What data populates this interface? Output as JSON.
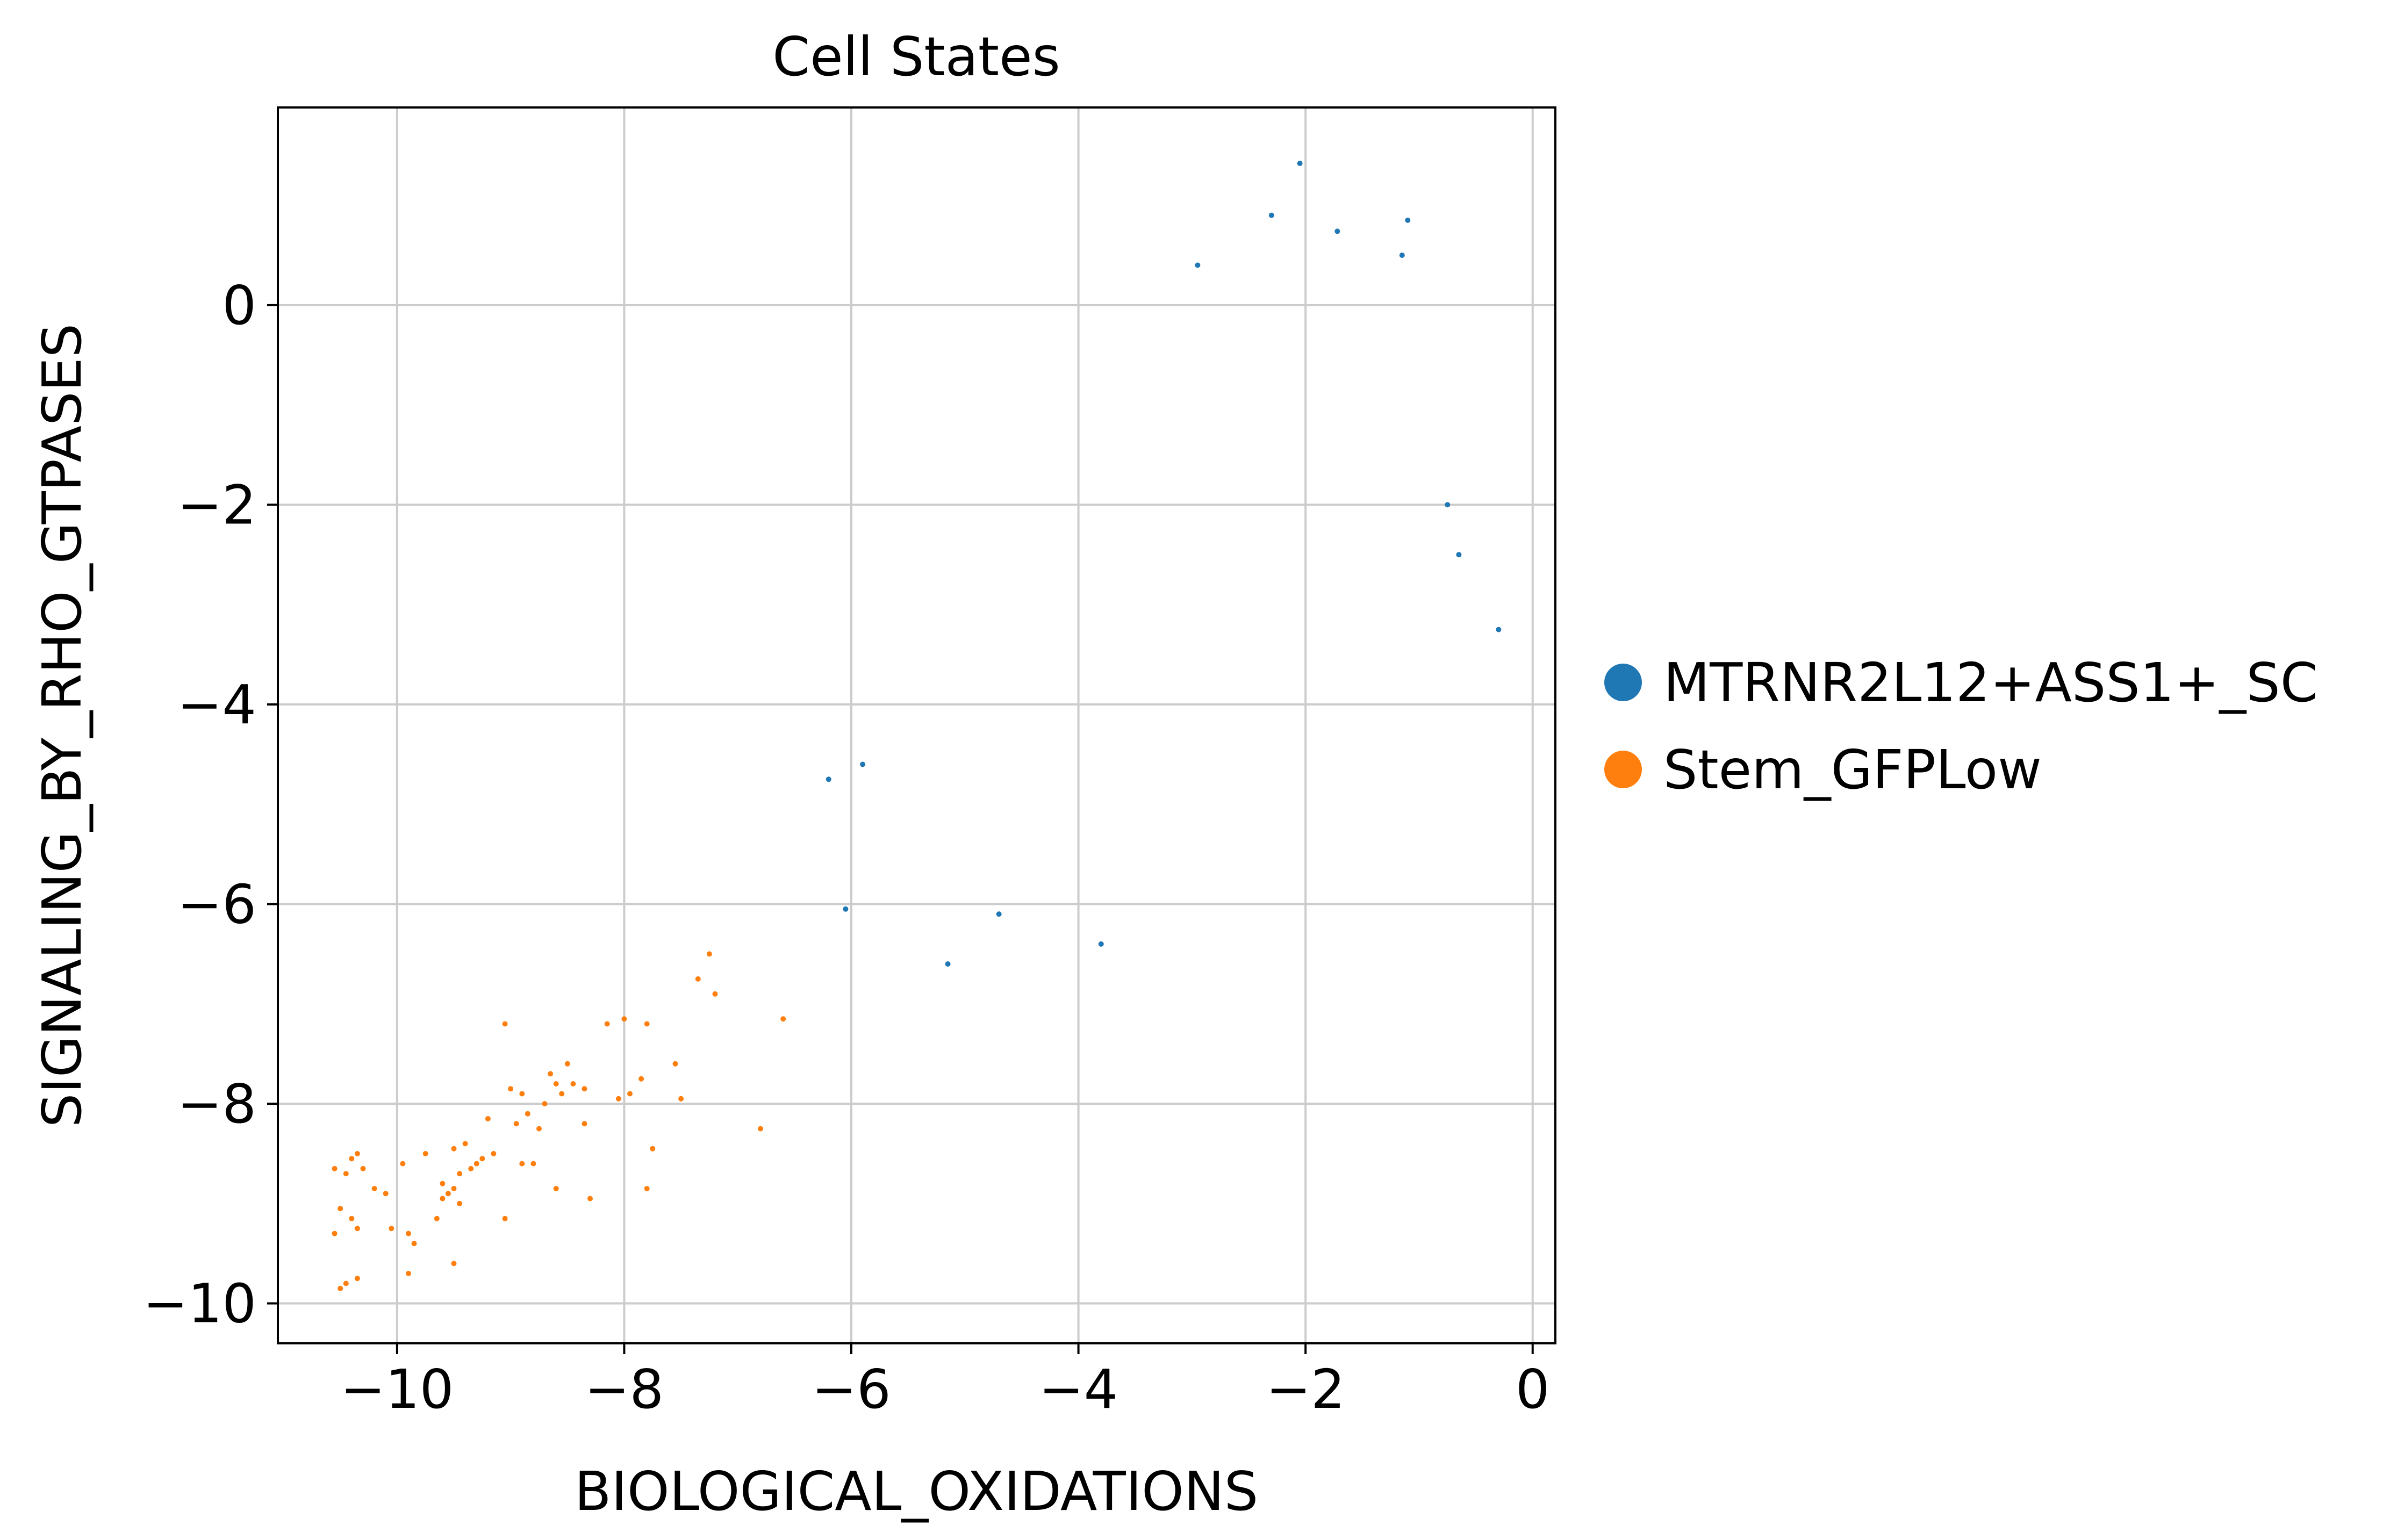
{
  "chart_data": {
    "type": "scatter",
    "title": "Cell States",
    "xlabel": "BIOLOGICAL_OXIDATIONS",
    "ylabel": "SIGNALING_BY_RHO_GTPASES",
    "xlim": [
      -11.05,
      0.2
    ],
    "ylim": [
      -10.4,
      1.98
    ],
    "xticks": [
      -10,
      -8,
      -6,
      -4,
      -2,
      0
    ],
    "yticks": [
      0,
      -2,
      -4,
      -6,
      -8,
      -10
    ],
    "xtick_labels": [
      "−10",
      "−8",
      "−6",
      "−4",
      "−2",
      "0"
    ],
    "ytick_labels": [
      "0",
      "−2",
      "−4",
      "−6",
      "−8",
      "−10"
    ],
    "grid": true,
    "legend_position": "right",
    "series": [
      {
        "name": "MTRNR2L12+ASS1+_SC",
        "color": "#1f77b4",
        "n_points": 5600,
        "distribution": {
          "mean": [
            -3.6,
            -3.4
          ],
          "sd_x": 0.95,
          "sd_y": 1.05,
          "correlation": 0.82,
          "x_range": [
            -6.2,
            -0.3
          ],
          "y_range": [
            -6.6,
            1.4
          ]
        },
        "points": [
          [
            -2.05,
            1.42
          ],
          [
            -2.3,
            0.9
          ],
          [
            -1.1,
            0.85
          ],
          [
            -1.72,
            0.74
          ],
          [
            -2.95,
            0.4
          ],
          [
            -1.15,
            0.5
          ],
          [
            -0.3,
            -3.25
          ],
          [
            -6.2,
            -4.75
          ],
          [
            -6.05,
            -6.05
          ],
          [
            -5.15,
            -6.6
          ],
          [
            -3.8,
            -6.4
          ],
          [
            -4.7,
            -6.1
          ],
          [
            -0.75,
            -2.0
          ],
          [
            -0.65,
            -2.5
          ],
          [
            -5.9,
            -4.6
          ]
        ]
      },
      {
        "name": "Stem_GFPLow",
        "color": "#ff7f0e",
        "points": [
          [
            -10.5,
            -9.85
          ],
          [
            -10.45,
            -9.8
          ],
          [
            -10.35,
            -9.75
          ],
          [
            -9.9,
            -9.7
          ],
          [
            -10.55,
            -8.65
          ],
          [
            -10.4,
            -8.55
          ],
          [
            -10.35,
            -8.5
          ],
          [
            -10.45,
            -8.7
          ],
          [
            -10.3,
            -8.65
          ],
          [
            -10.5,
            -9.05
          ],
          [
            -10.4,
            -9.15
          ],
          [
            -10.35,
            -9.25
          ],
          [
            -10.2,
            -8.85
          ],
          [
            -10.05,
            -9.25
          ],
          [
            -9.9,
            -9.3
          ],
          [
            -9.85,
            -9.4
          ],
          [
            -9.95,
            -8.6
          ],
          [
            -9.75,
            -8.5
          ],
          [
            -9.65,
            -9.15
          ],
          [
            -9.6,
            -8.8
          ],
          [
            -9.55,
            -8.9
          ],
          [
            -9.5,
            -8.85
          ],
          [
            -9.45,
            -9.0
          ],
          [
            -9.5,
            -8.45
          ],
          [
            -9.4,
            -8.4
          ],
          [
            -9.35,
            -8.65
          ],
          [
            -9.3,
            -8.6
          ],
          [
            -9.25,
            -8.55
          ],
          [
            -9.45,
            -8.7
          ],
          [
            -9.15,
            -8.5
          ],
          [
            -9.5,
            -9.6
          ],
          [
            -9.05,
            -9.15
          ],
          [
            -9.05,
            -7.2
          ],
          [
            -9.0,
            -7.85
          ],
          [
            -8.95,
            -8.2
          ],
          [
            -8.9,
            -7.9
          ],
          [
            -8.85,
            -8.1
          ],
          [
            -8.8,
            -8.6
          ],
          [
            -8.75,
            -8.25
          ],
          [
            -8.7,
            -8.0
          ],
          [
            -8.65,
            -7.7
          ],
          [
            -8.6,
            -7.8
          ],
          [
            -8.6,
            -8.85
          ],
          [
            -8.55,
            -7.9
          ],
          [
            -8.5,
            -7.6
          ],
          [
            -8.45,
            -7.8
          ],
          [
            -8.35,
            -7.85
          ],
          [
            -8.35,
            -8.2
          ],
          [
            -8.3,
            -8.95
          ],
          [
            -8.15,
            -7.2
          ],
          [
            -8.05,
            -7.95
          ],
          [
            -8.0,
            -7.15
          ],
          [
            -7.95,
            -7.9
          ],
          [
            -7.85,
            -7.75
          ],
          [
            -7.8,
            -7.2
          ],
          [
            -7.8,
            -8.85
          ],
          [
            -7.75,
            -8.45
          ],
          [
            -7.55,
            -7.6
          ],
          [
            -7.5,
            -7.95
          ],
          [
            -7.35,
            -6.75
          ],
          [
            -7.25,
            -6.5
          ],
          [
            -7.2,
            -6.9
          ],
          [
            -6.8,
            -8.25
          ],
          [
            -6.6,
            -7.15
          ],
          [
            -9.2,
            -8.15
          ],
          [
            -8.9,
            -8.6
          ],
          [
            -9.6,
            -8.95
          ],
          [
            -10.55,
            -9.3
          ],
          [
            -10.1,
            -8.9
          ]
        ]
      }
    ]
  }
}
